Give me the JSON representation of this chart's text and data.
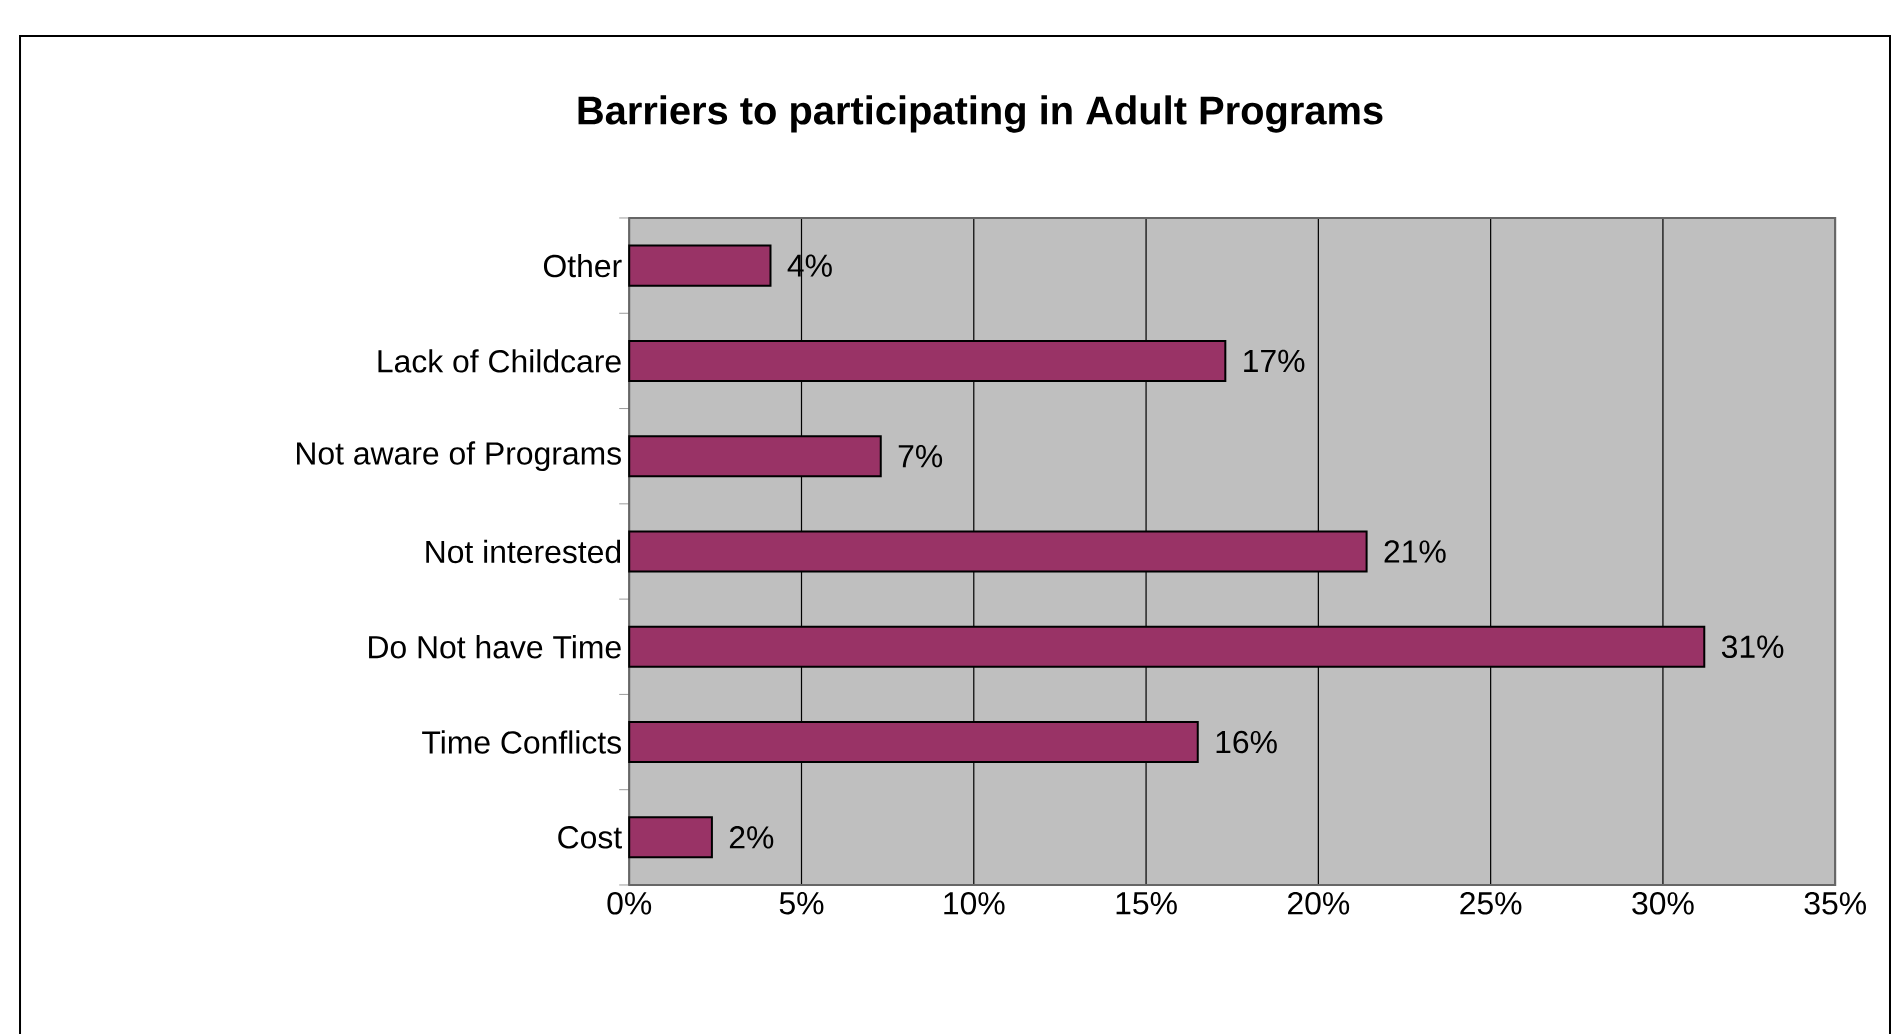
{
  "chart_data": {
    "type": "bar",
    "orientation": "horizontal",
    "title": "Barriers to participating in Adult Programs",
    "categories": [
      "Other",
      "Lack of Childcare",
      "Not aware of Programs",
      "Not interested",
      "Do Not have Time",
      "Time Conflicts",
      "Cost"
    ],
    "values": [
      4.1,
      17.3,
      7.3,
      21.4,
      31.2,
      16.5,
      2.4
    ],
    "value_labels": [
      "4%",
      "17%",
      "7%",
      "21%",
      "31%",
      "16%",
      "2%"
    ],
    "color": "#993366",
    "xlim": [
      0,
      35
    ],
    "xticks": [
      {
        "value": 0,
        "label": "0%"
      },
      {
        "value": 5,
        "label": "5%"
      },
      {
        "value": 10,
        "label": "10%"
      },
      {
        "value": 15,
        "label": "15%"
      },
      {
        "value": 20,
        "label": "20%"
      },
      {
        "value": 25,
        "label": "25%"
      },
      {
        "value": 30,
        "label": "30%"
      },
      {
        "value": 35,
        "label": "35%"
      }
    ],
    "grid": "x"
  }
}
